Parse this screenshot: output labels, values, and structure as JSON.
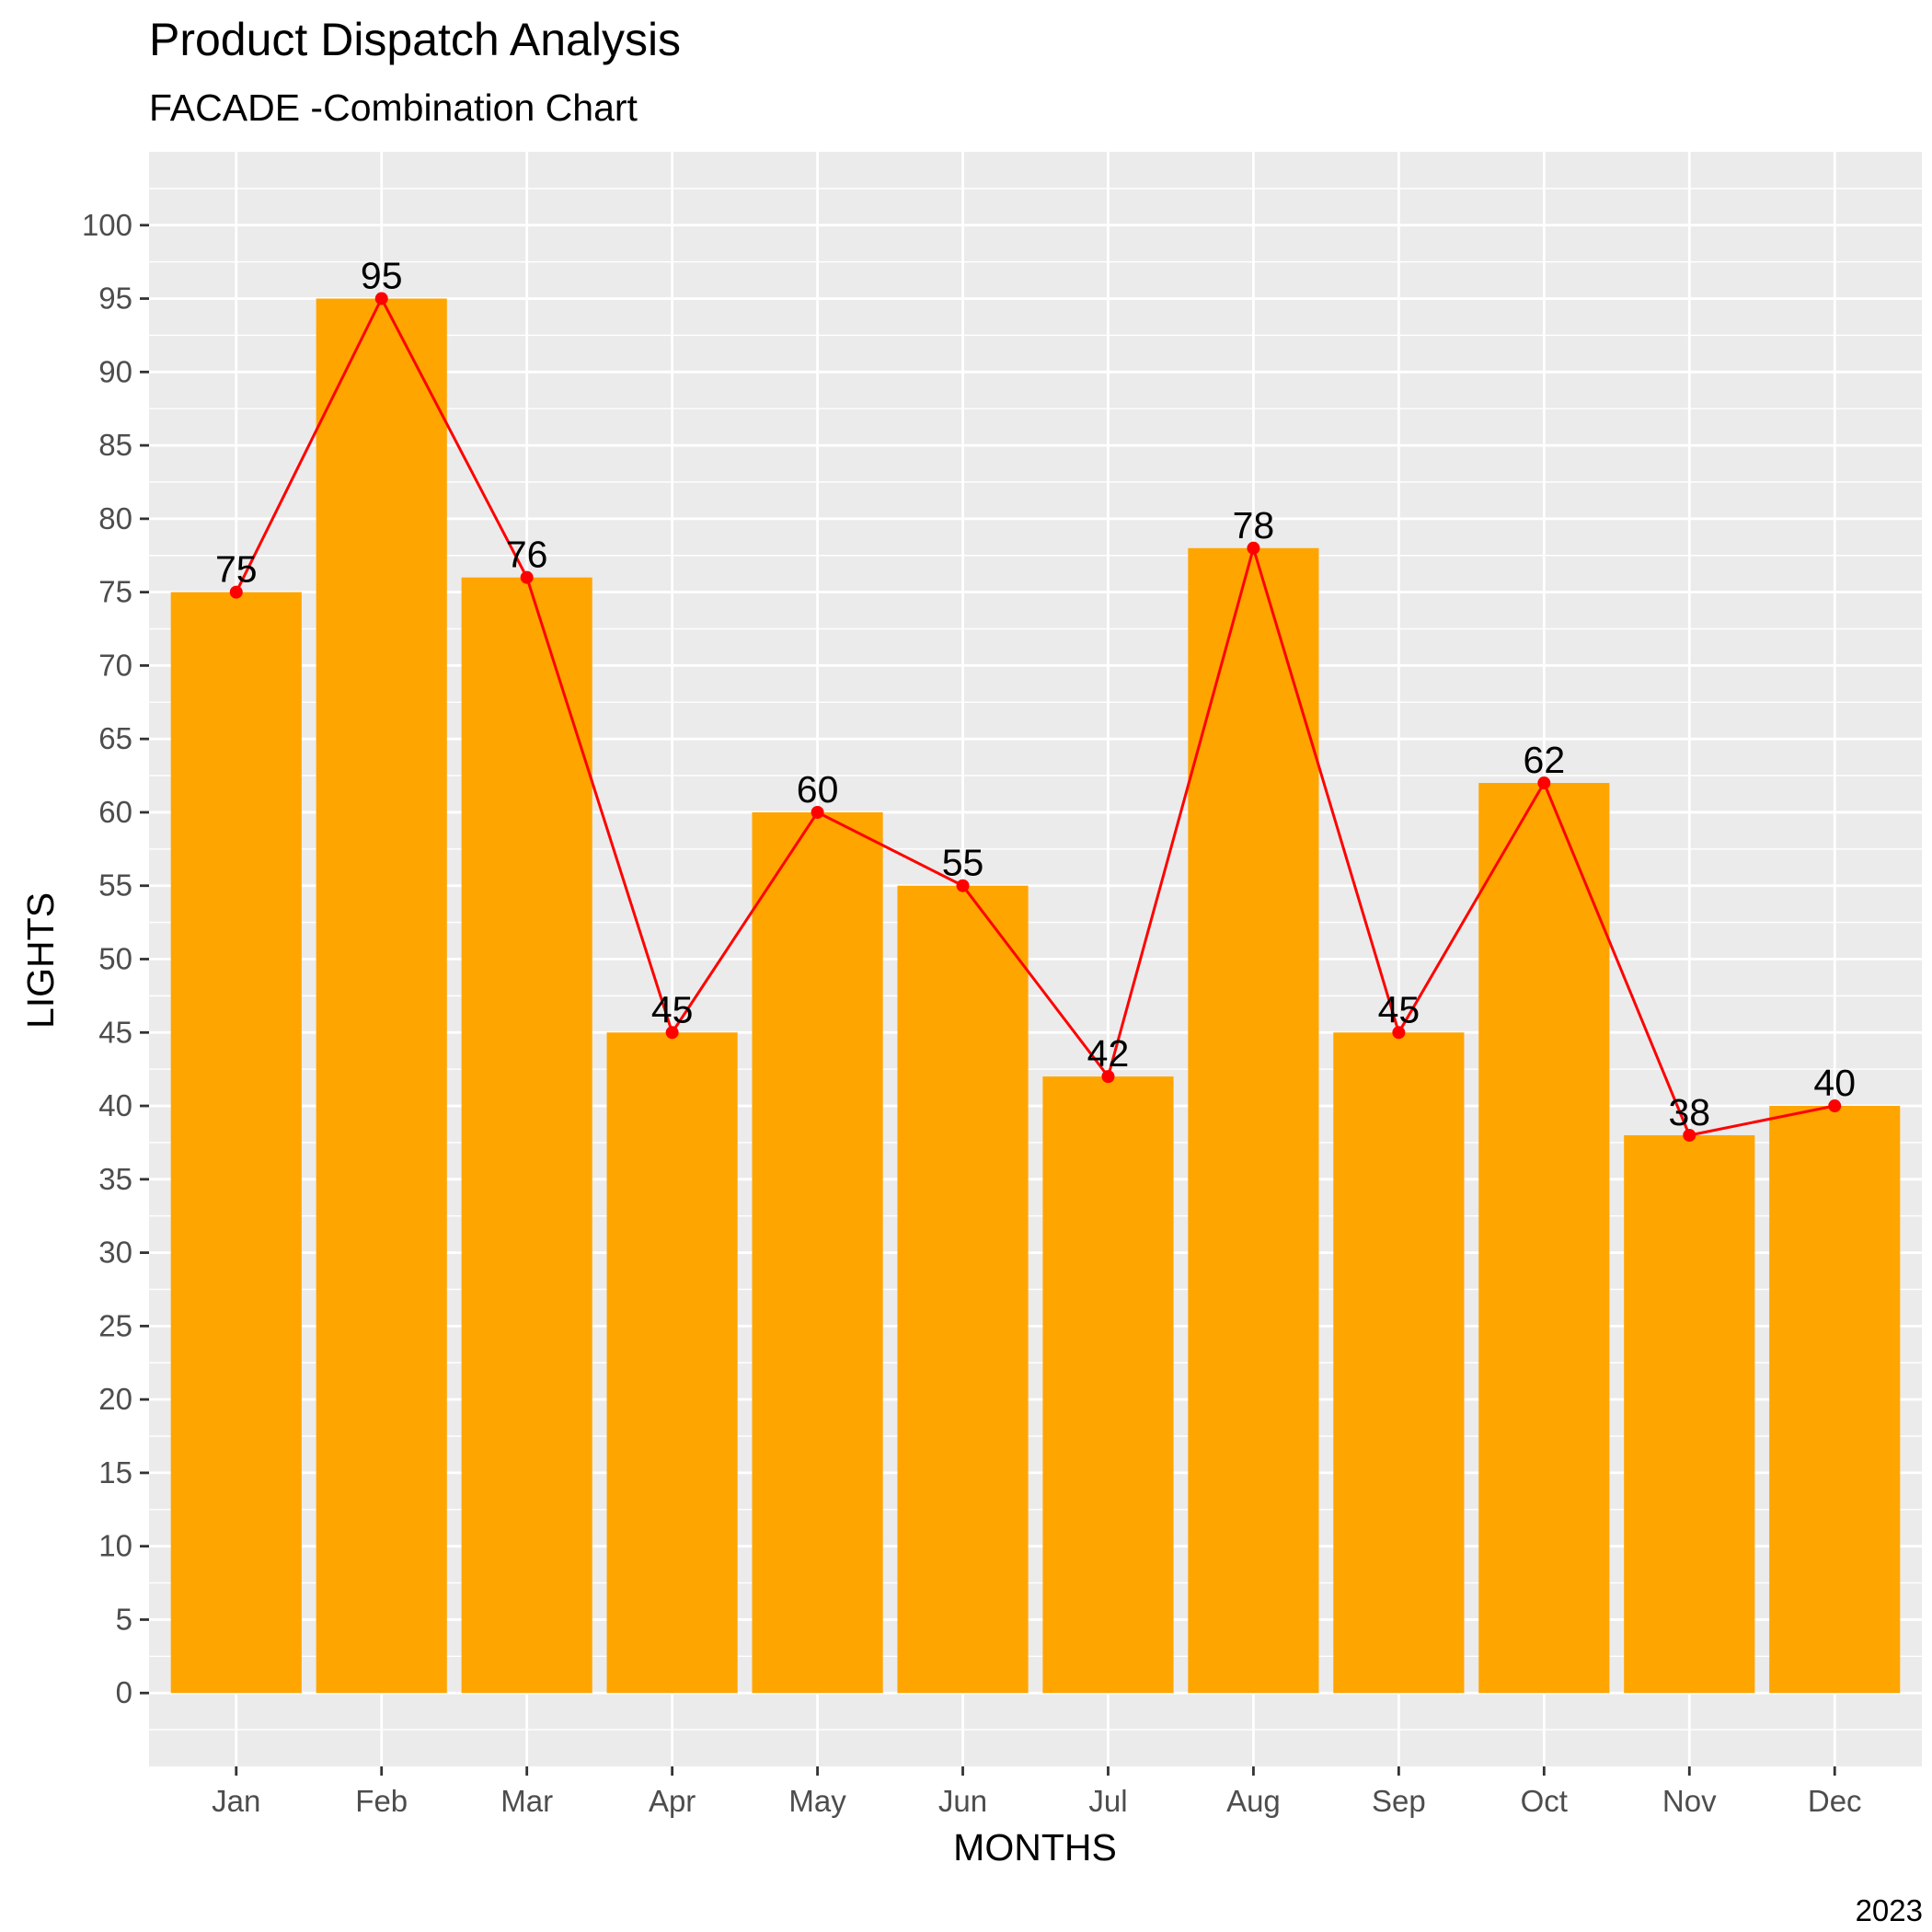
{
  "chart_data": {
    "type": "bar",
    "title": "Product Dispatch Analysis",
    "subtitle": "FACADE -Combination Chart",
    "caption": "2023",
    "xlabel": "MONTHS",
    "ylabel": "LIGHTS",
    "categories": [
      "Jan",
      "Feb",
      "Mar",
      "Apr",
      "May",
      "Jun",
      "Jul",
      "Aug",
      "Sep",
      "Oct",
      "Nov",
      "Dec"
    ],
    "values": [
      75,
      95,
      76,
      45,
      60,
      55,
      42,
      78,
      45,
      62,
      38,
      40
    ],
    "overlay_line": {
      "type": "line",
      "values": [
        75,
        95,
        76,
        45,
        60,
        55,
        42,
        78,
        45,
        62,
        38,
        40
      ]
    },
    "ylim": [
      -5,
      105
    ],
    "yticks": [
      0,
      5,
      10,
      15,
      20,
      25,
      30,
      35,
      40,
      45,
      50,
      55,
      60,
      65,
      70,
      75,
      80,
      85,
      90,
      95,
      100
    ],
    "grid": true,
    "legend": "none",
    "colors": {
      "bar": "#FFA500",
      "line": "#FF0000",
      "panel": "#EBEBEB",
      "grid": "#FFFFFF"
    }
  }
}
